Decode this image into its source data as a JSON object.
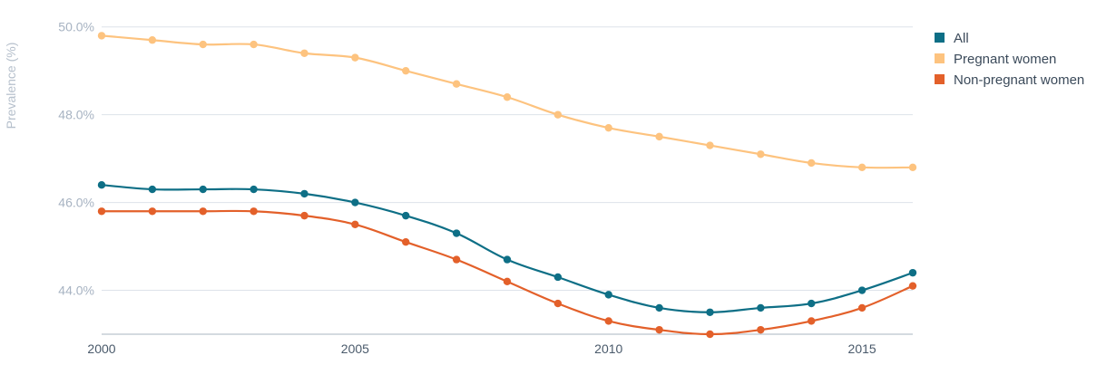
{
  "chart_data": {
    "type": "line",
    "title": "",
    "xlabel": "",
    "ylabel": "Prevalence (%)",
    "x": [
      2000,
      2001,
      2002,
      2003,
      2004,
      2005,
      2006,
      2007,
      2008,
      2009,
      2010,
      2011,
      2012,
      2013,
      2014,
      2015,
      2016
    ],
    "xlim": [
      2000,
      2016
    ],
    "ylim": [
      43.0,
      50.2
    ],
    "y_ticks": [
      44.0,
      46.0,
      48.0,
      50.0
    ],
    "y_tick_labels": [
      "44.0%",
      "46.0%",
      "48.0%",
      "50.0%"
    ],
    "x_ticks": [
      2000,
      2005,
      2010,
      2015
    ],
    "x_tick_labels": [
      "2000",
      "2005",
      "2010",
      "2015"
    ],
    "grid": true,
    "legend_position": "top-right",
    "series": [
      {
        "name": "All",
        "color": "#0e6f86",
        "values": [
          46.4,
          46.3,
          46.3,
          46.3,
          46.2,
          46.0,
          45.7,
          45.3,
          44.7,
          44.3,
          43.9,
          43.6,
          43.5,
          43.6,
          43.7,
          44.0,
          44.4
        ]
      },
      {
        "name": "Pregnant women",
        "color": "#fdc37f",
        "values": [
          49.8,
          49.7,
          49.6,
          49.6,
          49.4,
          49.3,
          49.0,
          48.7,
          48.4,
          48.0,
          47.7,
          47.5,
          47.3,
          47.1,
          46.9,
          46.8,
          46.8
        ]
      },
      {
        "name": "Non-pregnant women",
        "color": "#e3602a",
        "values": [
          45.8,
          45.8,
          45.8,
          45.8,
          45.7,
          45.5,
          45.1,
          44.7,
          44.2,
          43.7,
          43.3,
          43.1,
          43.0,
          43.1,
          43.3,
          43.6,
          44.1
        ]
      }
    ]
  }
}
